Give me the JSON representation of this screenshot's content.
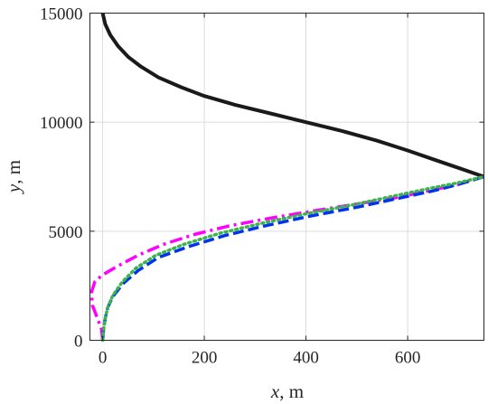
{
  "chart_data": {
    "type": "line",
    "xlim": [
      -25,
      750
    ],
    "ylim": [
      0,
      15000
    ],
    "x_ticks": [
      0,
      200,
      400,
      600
    ],
    "y_ticks": [
      0,
      5000,
      10000,
      15000
    ],
    "x_tick_labels": [
      "0",
      "200",
      "400",
      "600"
    ],
    "y_tick_labels": [
      "0",
      "5000",
      "10000",
      "15000"
    ],
    "xlabel": {
      "var": "x",
      "unit": ", m"
    },
    "ylabel": {
      "var": "y",
      "unit": ", m"
    },
    "grid": true,
    "series": [
      {
        "color": "#1a1a1a",
        "dash": "solid",
        "x": [
          0,
          5,
          15,
          30,
          50,
          75,
          110,
          155,
          200,
          260,
          330,
          400,
          470,
          540,
          600,
          650,
          700,
          750
        ],
        "y": [
          15000,
          14500,
          14000,
          13500,
          13000,
          12550,
          12050,
          11600,
          11200,
          10800,
          10400,
          10000,
          9600,
          9150,
          8700,
          8300,
          7900,
          7500
        ]
      },
      {
        "color": "#ff00ff",
        "dash": "dashdot",
        "x": [
          0,
          -2,
          -10,
          -20,
          -22,
          -15,
          0,
          30,
          70,
          120,
          180,
          250,
          330,
          420,
          500,
          580,
          650,
          700,
          750
        ],
        "y": [
          0,
          500,
          1000,
          1600,
          2200,
          2700,
          3000,
          3400,
          3900,
          4400,
          4850,
          5250,
          5600,
          5950,
          6250,
          6550,
          6900,
          7150,
          7500
        ]
      },
      {
        "color": "#0033ee",
        "dash": "dashed",
        "x": [
          0,
          2,
          5,
          10,
          20,
          40,
          70,
          110,
          170,
          240,
          320,
          410,
          500,
          580,
          650,
          700,
          750
        ],
        "y": [
          0,
          500,
          1000,
          1500,
          2000,
          2600,
          3200,
          3800,
          4300,
          4800,
          5250,
          5700,
          6100,
          6500,
          6850,
          7150,
          7500
        ]
      },
      {
        "color": "#3cb44b",
        "dash": "dotted",
        "x": [
          0,
          2,
          5,
          10,
          20,
          38,
          65,
          105,
          160,
          230,
          310,
          400,
          490,
          570,
          640,
          695,
          750
        ],
        "y": [
          0,
          500,
          1000,
          1500,
          2050,
          2650,
          3300,
          3900,
          4400,
          4900,
          5350,
          5800,
          6200,
          6600,
          6950,
          7200,
          7500
        ]
      }
    ]
  }
}
